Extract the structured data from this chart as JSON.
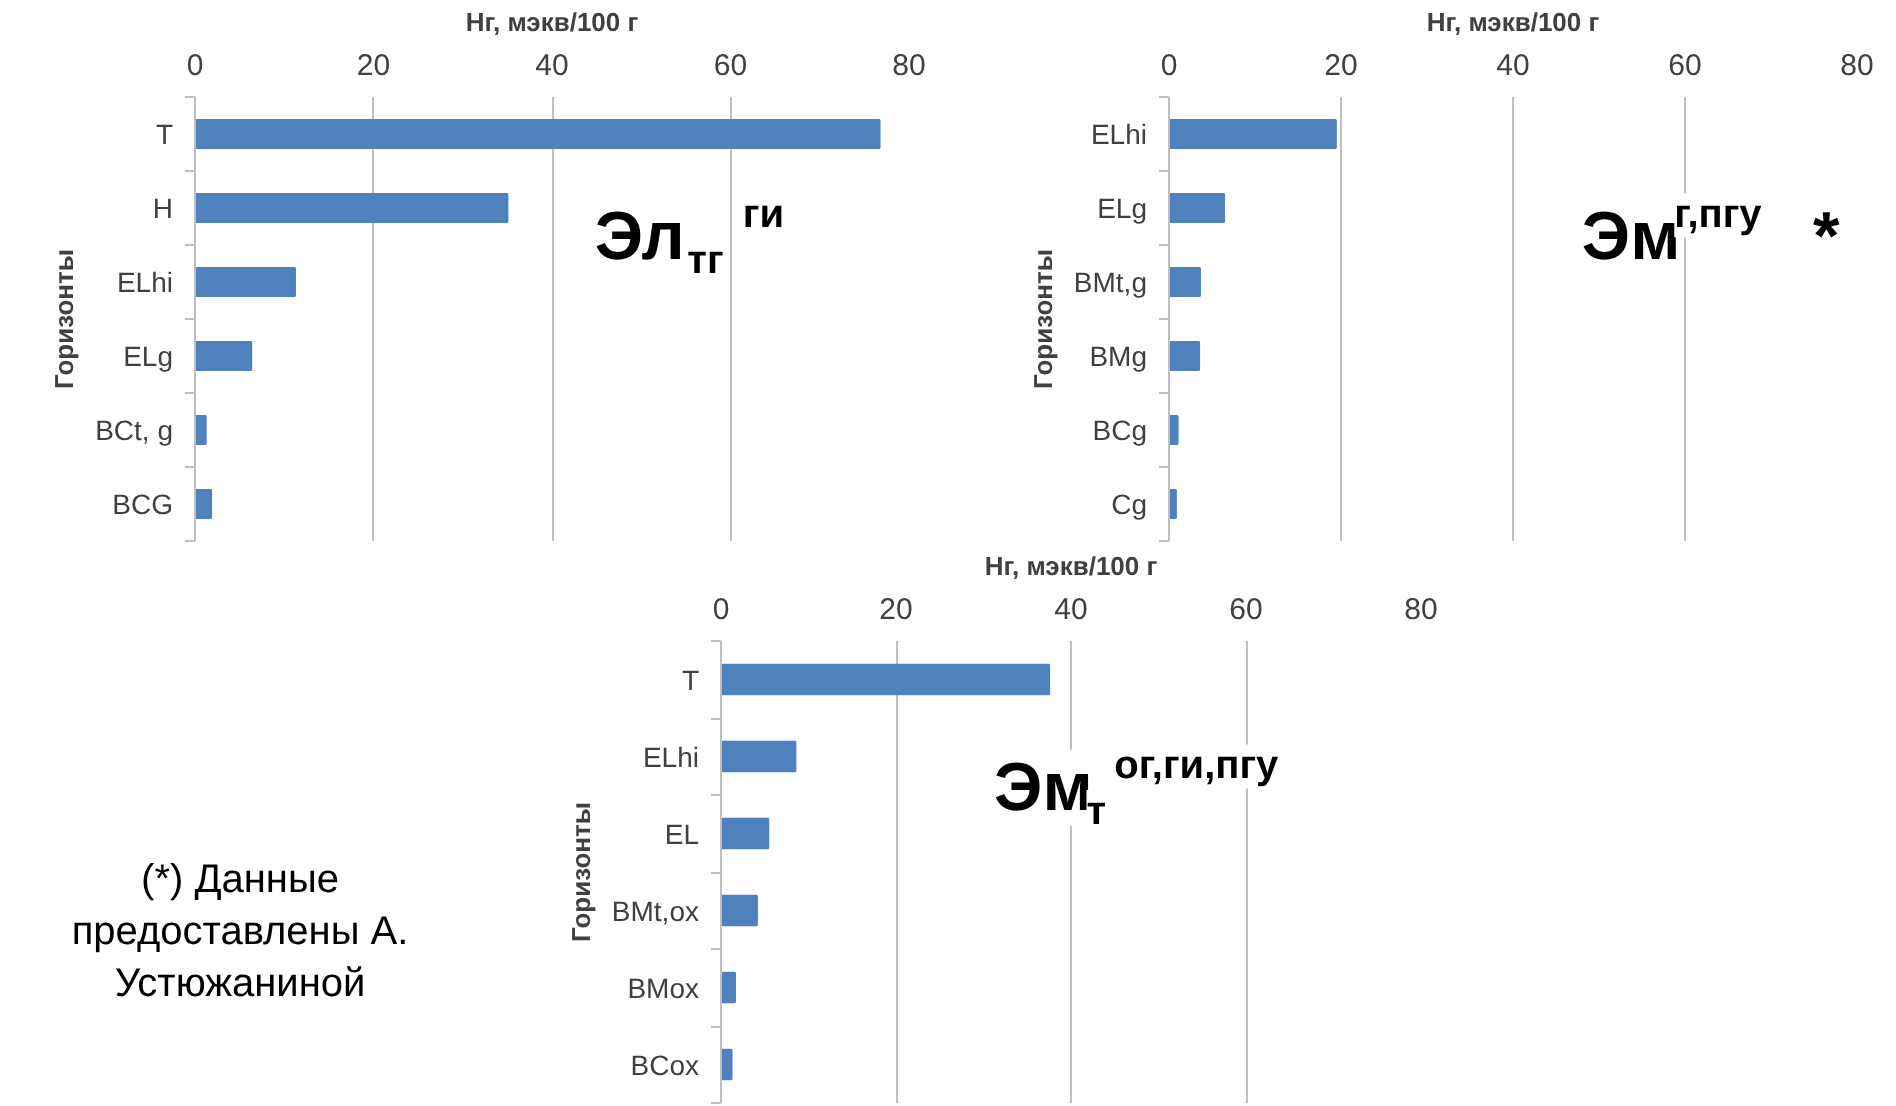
{
  "chart_data": [
    {
      "type": "bar",
      "orientation": "horizontal",
      "xlabel": "Нг, мэкв/100 г",
      "ylabel": "Горизонты",
      "categories": [
        "T",
        "H",
        "ELhi",
        "ELg",
        "BCt, g",
        "BCG"
      ],
      "series": [
        {
          "color": "#4f81bd",
          "values": [
            76.7,
            35,
            11.2,
            6.3,
            1.2,
            1.8
          ]
        }
      ],
      "xlim": [
        0,
        80
      ],
      "xticks": [
        0,
        20,
        40,
        60,
        80
      ],
      "grid": "x",
      "annotations": [
        "Эл$_{тг}$$^{ги}$"
      ]
    },
    {
      "type": "bar",
      "orientation": "horizontal",
      "xlabel": "Нг, мэкв/100 г",
      "ylabel": "Горизонты",
      "categories": [
        "ELhi",
        "ELg",
        "BMt,g",
        "BMg",
        "BCg",
        "Cg"
      ],
      "series": [
        {
          "color": "#4f81bd",
          "values": [
            19.4,
            6.4,
            3.6,
            3.5,
            1.0,
            0.8
          ]
        }
      ],
      "xlim": [
        0,
        80
      ],
      "xticks": [
        0,
        20,
        40,
        60,
        80
      ],
      "grid": "x",
      "annotations": [
        "Эм$^{г,пгу}$  *"
      ]
    },
    {
      "type": "bar",
      "orientation": "horizontal",
      "xlabel": "Нг, мэкв/100 г",
      "ylabel": "Горизонты",
      "categories": [
        "T",
        "ELhi",
        "EL",
        "BMt,ox",
        "BMox",
        "BCox"
      ],
      "series": [
        {
          "color": "#4f81bd",
          "values": [
            37.5,
            8.5,
            5.4,
            4.1,
            1.6,
            1.2
          ]
        }
      ],
      "xlim": [
        0,
        80
      ],
      "xticks": [
        0,
        20,
        40,
        60,
        80
      ],
      "grid": "x",
      "annotations": [
        "Эм$_{т}$$^{ог,ги,пгу}$",
        "(*) Данные предоставлены А. Устюжаниной"
      ]
    }
  ]
}
